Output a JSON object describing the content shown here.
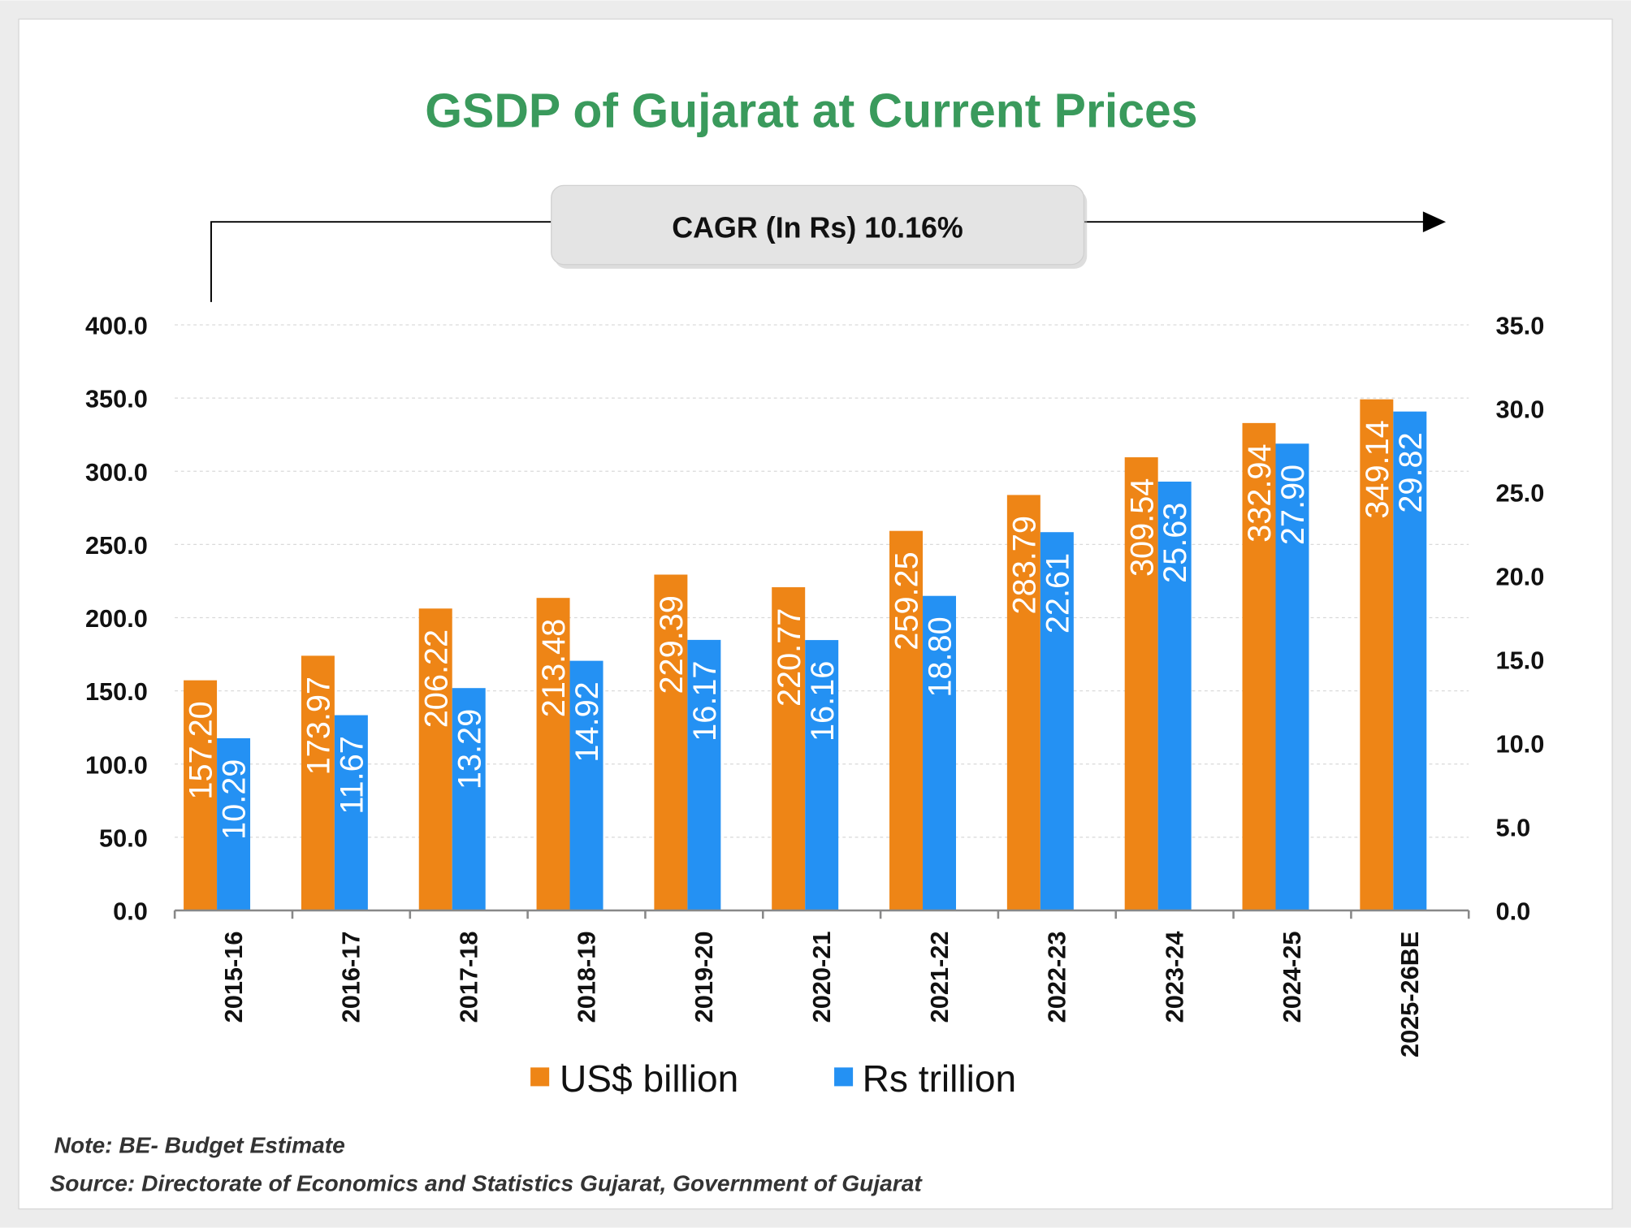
{
  "chart_data": {
    "type": "bar",
    "title": "GSDP of Gujarat at Current Prices",
    "annotation": "CAGR (In Rs) 10.16%",
    "categories": [
      "2015-16",
      "2016-17",
      "2017-18",
      "2018-19",
      "2019-20",
      "2020-21",
      "2021-22",
      "2022-23",
      "2023-24",
      "2024-25",
      "2025-26BE"
    ],
    "series": [
      {
        "name": "US$ billion",
        "axis": "left",
        "color": "#EE8516",
        "values": [
          157.2,
          173.97,
          206.22,
          213.48,
          229.39,
          220.77,
          259.25,
          283.79,
          309.54,
          332.94,
          349.14
        ],
        "labels": [
          "157.20",
          "173.97",
          "206.22",
          "213.48",
          "229.39",
          "220.77",
          "259.25",
          "283.79",
          "309.54",
          "332.94",
          "349.14"
        ]
      },
      {
        "name": "Rs trillion",
        "axis": "right",
        "color": "#2491F3",
        "values": [
          10.29,
          11.67,
          13.29,
          14.92,
          16.17,
          16.16,
          18.8,
          22.61,
          25.63,
          27.9,
          29.82
        ],
        "labels": [
          "10.29",
          "11.67",
          "13.29",
          "14.92",
          "16.17",
          "16.16",
          "18.80",
          "22.61",
          "25.63",
          "27.90",
          "29.82"
        ]
      }
    ],
    "left_axis": {
      "ylim": [
        0,
        400
      ],
      "ticks": [
        "0.0",
        "50.0",
        "100.0",
        "150.0",
        "200.0",
        "250.0",
        "300.0",
        "350.0",
        "400.0"
      ]
    },
    "right_axis": {
      "ylim": [
        0,
        35
      ],
      "ticks": [
        "0.0",
        "5.0",
        "10.0",
        "15.0",
        "20.0",
        "25.0",
        "30.0",
        "35.0"
      ]
    },
    "grid": true,
    "legend": "bottom"
  },
  "notes": {
    "note": "Note: BE- Budget Estimate",
    "source": "Source: Directorate of Economics and Statistics Gujarat, Government of Gujarat"
  },
  "colors": {
    "title": "#3A9A5C",
    "us": "#EE8516",
    "rs": "#2491F3"
  }
}
